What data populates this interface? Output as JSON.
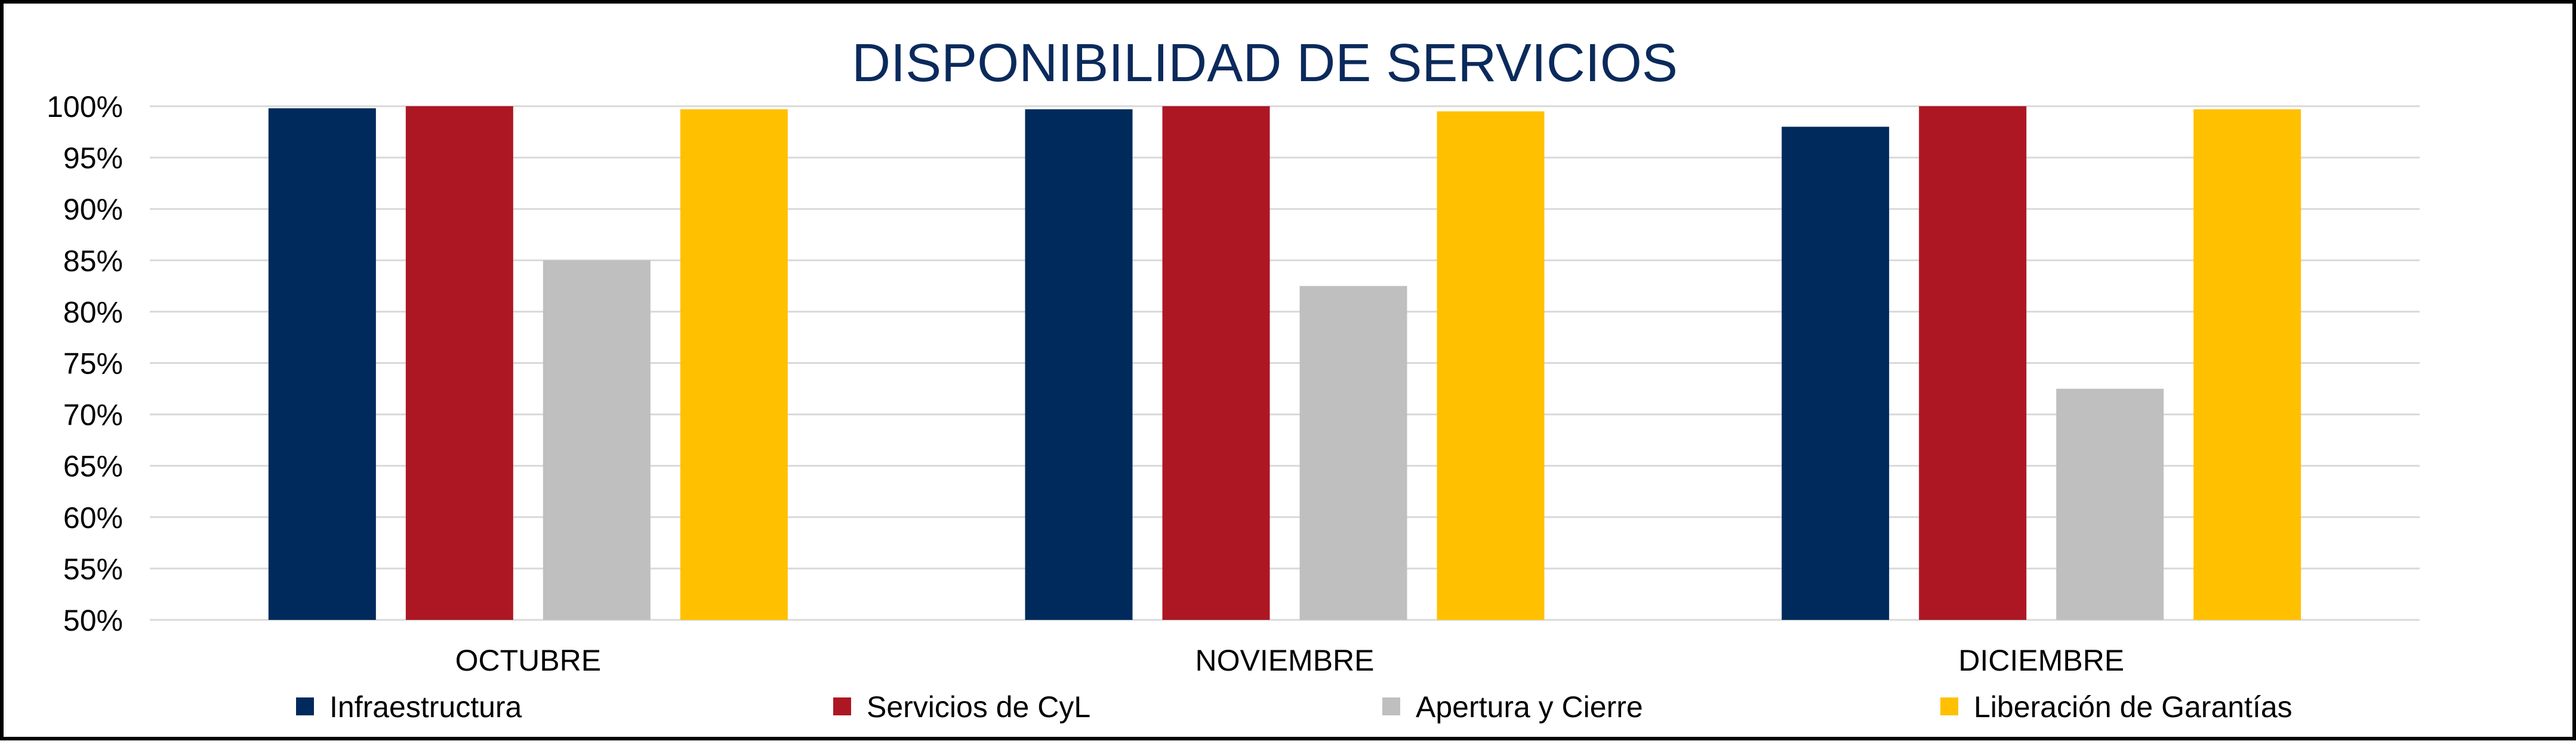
{
  "chart_data": {
    "type": "bar",
    "title": "DISPONIBILIDAD DE SERVICIOS",
    "xlabel": "",
    "ylabel": "",
    "categories": [
      "OCTUBRE",
      "NOVIEMBRE",
      "DICIEMBRE"
    ],
    "series": [
      {
        "name": "Infraestructura",
        "color": "#002a5c",
        "values": [
          99.8,
          99.7,
          98.0
        ]
      },
      {
        "name": "Servicios de CyL",
        "color": "#ad1723",
        "values": [
          100.0,
          100.0,
          100.0
        ]
      },
      {
        "name": "Apertura y Cierre",
        "color": "#bfbfbf",
        "values": [
          85.0,
          82.5,
          72.5
        ]
      },
      {
        "name": "Liberación de Garantías",
        "color": "#ffc000",
        "values": [
          99.7,
          99.5,
          99.7
        ]
      }
    ],
    "ylim": [
      50,
      100
    ],
    "yticks": [
      "50%",
      "55%",
      "60%",
      "65%",
      "70%",
      "75%",
      "80%",
      "85%",
      "90%",
      "95%",
      "100%"
    ],
    "ytick_values": [
      50,
      55,
      60,
      65,
      70,
      75,
      80,
      85,
      90,
      95,
      100
    ],
    "grid": true,
    "legend_position": "bottom"
  }
}
